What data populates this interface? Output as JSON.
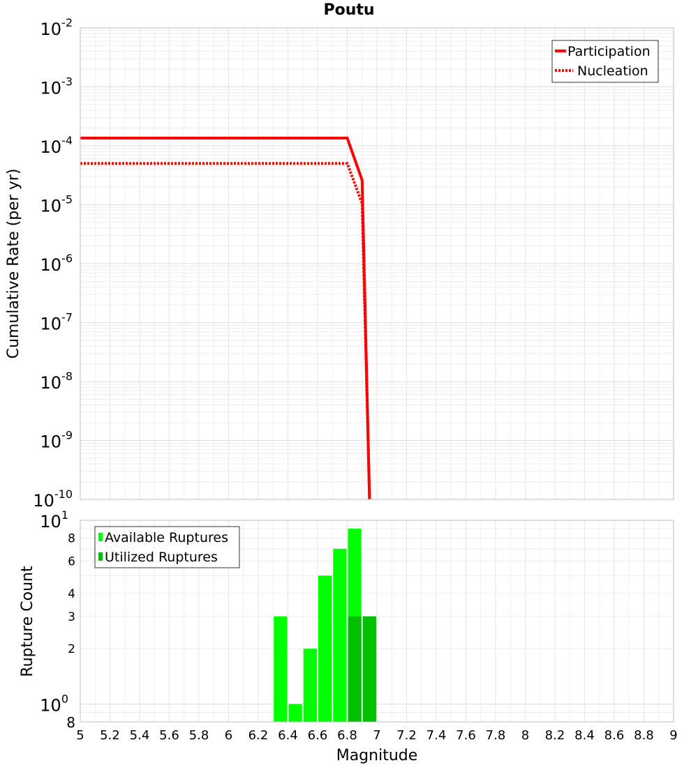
{
  "chart_data": [
    {
      "type": "line",
      "title": "Poutu",
      "xlabel": "",
      "ylabel": "Cumulative Rate (per yr)",
      "y_scale": "log",
      "ylim": [
        1e-10,
        0.01
      ],
      "xlim": [
        5,
        9
      ],
      "y_tick_labels": [
        {
          "base": "10",
          "exp": "-2"
        },
        {
          "base": "10",
          "exp": "-3"
        },
        {
          "base": "10",
          "exp": "-4"
        },
        {
          "base": "10",
          "exp": "-5"
        },
        {
          "base": "10",
          "exp": "-6"
        },
        {
          "base": "10",
          "exp": "-7"
        },
        {
          "base": "10",
          "exp": "-8"
        },
        {
          "base": "10",
          "exp": "-9"
        },
        {
          "base": "10",
          "exp": "-10"
        }
      ],
      "grid": true,
      "legend_position": "top-right",
      "series": [
        {
          "name": "Participation",
          "style": "solid",
          "color": "#ff0000",
          "x": [
            5.0,
            6.8,
            6.9,
            6.95
          ],
          "y": [
            0.000135,
            0.000135,
            2.6e-05,
            1e-10
          ]
        },
        {
          "name": "Nucleation",
          "style": "dotted",
          "color": "#ff0000",
          "x": [
            5.0,
            6.8,
            6.9,
            6.95
          ],
          "y": [
            5e-05,
            5e-05,
            1.05e-05,
            1e-10
          ]
        }
      ]
    },
    {
      "type": "bar",
      "xlabel": "Magnitude",
      "ylabel": "Rupture Count",
      "y_scale": "log",
      "ylim": [
        0.8,
        10
      ],
      "xlim": [
        5,
        9
      ],
      "x_tick_labels": [
        "5",
        "5.2",
        "5.4",
        "5.6",
        "5.8",
        "6",
        "6.2",
        "6.4",
        "6.6",
        "6.8",
        "7",
        "7.2",
        "7.4",
        "7.6",
        "7.8",
        "8",
        "8.2",
        "8.4",
        "8.6",
        "8.8",
        "9"
      ],
      "y_tick_labels": [
        {
          "text": "8",
          "value": 8
        },
        {
          "text": "6",
          "value": 6
        },
        {
          "text": "4",
          "value": 4
        },
        {
          "text": "3",
          "value": 3
        },
        {
          "text": "2",
          "value": 2
        }
      ],
      "y_major_tick_labels": [
        {
          "base": "10",
          "exp": "1",
          "value": 10
        },
        {
          "base": "10",
          "exp": "0",
          "value": 1
        }
      ],
      "y_min_label": "8",
      "grid": true,
      "legend_position": "top-left",
      "categories": [
        6.35,
        6.45,
        6.55,
        6.65,
        6.75,
        6.85,
        6.95
      ],
      "series": [
        {
          "name": "Available Ruptures",
          "color": "#00ff00",
          "values": [
            3,
            1,
            2,
            5,
            7,
            9,
            3
          ]
        },
        {
          "name": "Utilized Ruptures",
          "color": "#00c000",
          "values": [
            0,
            0,
            0,
            0,
            0,
            3,
            3
          ]
        }
      ]
    }
  ]
}
